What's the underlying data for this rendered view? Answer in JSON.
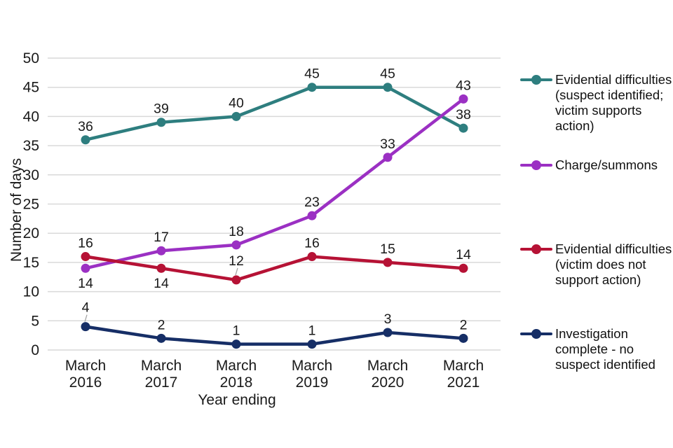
{
  "figure": {
    "ylabel": "Number of days",
    "xlabel": "Year ending"
  },
  "chart_data": {
    "type": "line",
    "categories": [
      "March 2016",
      "March 2017",
      "March 2018",
      "March 2019",
      "March 2020",
      "March 2021"
    ],
    "series": [
      {
        "name": "Evidential difficulties (suspect identified; victim supports action)",
        "color": "#2E7E7F",
        "values": [
          36,
          39,
          40,
          45,
          45,
          38
        ],
        "label_placement": [
          "above",
          "above",
          "above",
          "above",
          "above",
          "above"
        ]
      },
      {
        "name": "Charge/summons",
        "color": "#9B30C3",
        "values": [
          14,
          17,
          18,
          23,
          33,
          43
        ],
        "label_placement": [
          "below",
          "above",
          "above",
          "above",
          "above",
          "above"
        ]
      },
      {
        "name": "Evidential difficulties (victim does not support action)",
        "color": "#B61235",
        "values": [
          16,
          14,
          12,
          16,
          15,
          14
        ],
        "label_placement": [
          "above",
          "below",
          "leader",
          "above",
          "above",
          "above"
        ]
      },
      {
        "name": "Investigation complete - no suspect identified",
        "color": "#162E66",
        "values": [
          4,
          2,
          1,
          1,
          3,
          2
        ],
        "label_placement": [
          "leader",
          "above",
          "above",
          "above",
          "above",
          "above"
        ]
      }
    ],
    "title": "",
    "xlabel": "Year ending",
    "ylabel": "Number of days",
    "ylim": [
      0,
      50
    ],
    "yticks": [
      0,
      5,
      10,
      15,
      20,
      25,
      30,
      35,
      40,
      45,
      50
    ],
    "grid": "horizontal",
    "gridline_color": "#D9D9D9",
    "leader_line_color": "#A6A6A6",
    "data_label_color": "#333333",
    "legend_position": "right"
  }
}
